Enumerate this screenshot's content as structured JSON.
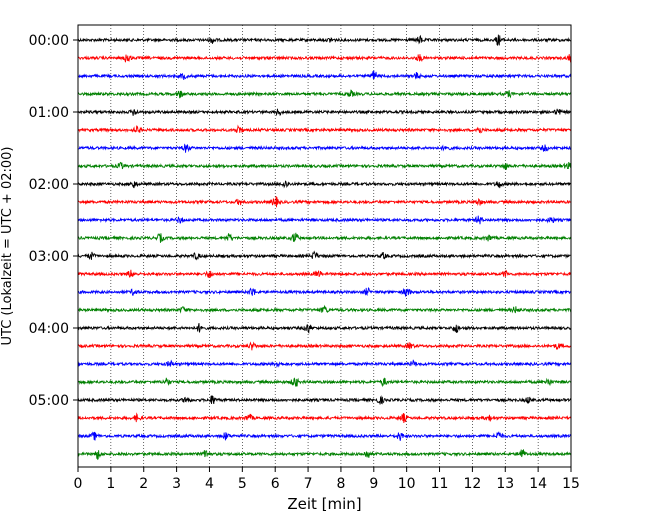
{
  "chart_data": {
    "type": "line",
    "title": "",
    "xlabel": "Zeit  [min]",
    "ylabel": "UTC (Lokalzeit = UTC + 02:00)",
    "xlim": [
      0,
      15
    ],
    "x_ticks": [
      "0",
      "1",
      "2",
      "3",
      "4",
      "5",
      "6",
      "7",
      "8",
      "9",
      "10",
      "11",
      "12",
      "13",
      "14",
      "15"
    ],
    "y_ticks": [
      "00:00",
      "01:00",
      "02:00",
      "03:00",
      "04:00",
      "05:00"
    ],
    "grid": "vertical dotted at every minute",
    "trace_interval_minutes": 15,
    "trace_colors": [
      "#000000",
      "#ff0000",
      "#0000ff",
      "#008000"
    ],
    "traces": [
      {
        "start": "00:00",
        "bursts": [
          [
            4.1,
            0.5
          ],
          [
            7.7,
            0.4
          ],
          [
            10.4,
            0.6
          ],
          [
            12.8,
            0.9
          ]
        ]
      },
      {
        "start": "00:15",
        "bursts": [
          [
            1.5,
            0.9
          ],
          [
            10.4,
            0.6
          ],
          [
            15.0,
            0.8
          ]
        ]
      },
      {
        "start": "00:30",
        "bursts": [
          [
            3.2,
            0.5
          ],
          [
            9.0,
            0.9
          ],
          [
            10.3,
            0.5
          ]
        ]
      },
      {
        "start": "00:45",
        "bursts": [
          [
            3.1,
            0.6
          ],
          [
            8.3,
            0.5
          ],
          [
            13.1,
            0.5
          ]
        ]
      },
      {
        "start": "01:00",
        "bursts": [
          [
            1.7,
            0.6
          ],
          [
            6.1,
            0.5
          ],
          [
            14.6,
            0.5
          ]
        ]
      },
      {
        "start": "01:15",
        "bursts": [
          [
            1.8,
            0.6
          ],
          [
            4.9,
            0.7
          ],
          [
            12.2,
            0.6
          ]
        ]
      },
      {
        "start": "01:30",
        "bursts": [
          [
            3.3,
            0.7
          ],
          [
            11.2,
            0.5
          ],
          [
            14.2,
            0.5
          ]
        ]
      },
      {
        "start": "01:45",
        "bursts": [
          [
            1.3,
            0.5
          ],
          [
            13.0,
            0.5
          ],
          [
            14.9,
            0.6
          ]
        ]
      },
      {
        "start": "02:00",
        "bursts": [
          [
            1.7,
            0.6
          ],
          [
            6.3,
            0.6
          ],
          [
            12.8,
            0.6
          ]
        ]
      },
      {
        "start": "02:15",
        "bursts": [
          [
            4.9,
            0.5
          ],
          [
            6.0,
            0.9
          ],
          [
            12.2,
            0.5
          ]
        ]
      },
      {
        "start": "02:30",
        "bursts": [
          [
            3.1,
            0.5
          ],
          [
            12.2,
            0.7
          ],
          [
            14.4,
            0.5
          ]
        ]
      },
      {
        "start": "02:45",
        "bursts": [
          [
            2.5,
            0.7
          ],
          [
            4.6,
            0.7
          ],
          [
            6.6,
            0.9
          ],
          [
            12.5,
            0.5
          ]
        ]
      },
      {
        "start": "03:00",
        "bursts": [
          [
            0.4,
            0.6
          ],
          [
            3.6,
            0.5
          ],
          [
            7.2,
            0.7
          ],
          [
            9.3,
            0.5
          ]
        ]
      },
      {
        "start": "03:15",
        "bursts": [
          [
            1.6,
            0.6
          ],
          [
            4.0,
            0.6
          ],
          [
            7.3,
            0.6
          ],
          [
            13.0,
            0.5
          ]
        ]
      },
      {
        "start": "03:30",
        "bursts": [
          [
            1.7,
            0.5
          ],
          [
            5.3,
            0.8
          ],
          [
            8.8,
            0.6
          ],
          [
            10.0,
            0.8
          ]
        ]
      },
      {
        "start": "03:45",
        "bursts": [
          [
            3.2,
            0.5
          ],
          [
            7.5,
            0.6
          ],
          [
            13.3,
            0.5
          ]
        ]
      },
      {
        "start": "04:00",
        "bursts": [
          [
            3.7,
            0.7
          ],
          [
            7.0,
            0.8
          ],
          [
            11.5,
            0.8
          ]
        ]
      },
      {
        "start": "04:15",
        "bursts": [
          [
            5.3,
            0.6
          ],
          [
            10.1,
            0.5
          ],
          [
            14.6,
            0.5
          ]
        ]
      },
      {
        "start": "04:30",
        "bursts": [
          [
            2.8,
            0.5
          ],
          [
            6.1,
            0.5
          ],
          [
            10.2,
            0.5
          ]
        ]
      },
      {
        "start": "04:45",
        "bursts": [
          [
            2.7,
            0.6
          ],
          [
            6.6,
            0.9
          ],
          [
            9.3,
            0.6
          ],
          [
            14.3,
            0.6
          ]
        ]
      },
      {
        "start": "05:00",
        "bursts": [
          [
            3.3,
            0.6
          ],
          [
            4.1,
            0.8
          ],
          [
            9.2,
            0.6
          ],
          [
            13.7,
            0.5
          ]
        ]
      },
      {
        "start": "05:15",
        "bursts": [
          [
            1.8,
            0.6
          ],
          [
            5.2,
            0.6
          ],
          [
            9.9,
            0.7
          ],
          [
            12.5,
            0.5
          ]
        ]
      },
      {
        "start": "05:30",
        "bursts": [
          [
            0.5,
            0.6
          ],
          [
            4.5,
            0.6
          ],
          [
            9.8,
            0.7
          ],
          [
            12.8,
            0.8
          ]
        ]
      },
      {
        "start": "05:45",
        "bursts": [
          [
            0.6,
            0.8
          ],
          [
            3.9,
            0.7
          ],
          [
            8.8,
            0.7
          ],
          [
            13.5,
            0.9
          ]
        ]
      }
    ]
  }
}
